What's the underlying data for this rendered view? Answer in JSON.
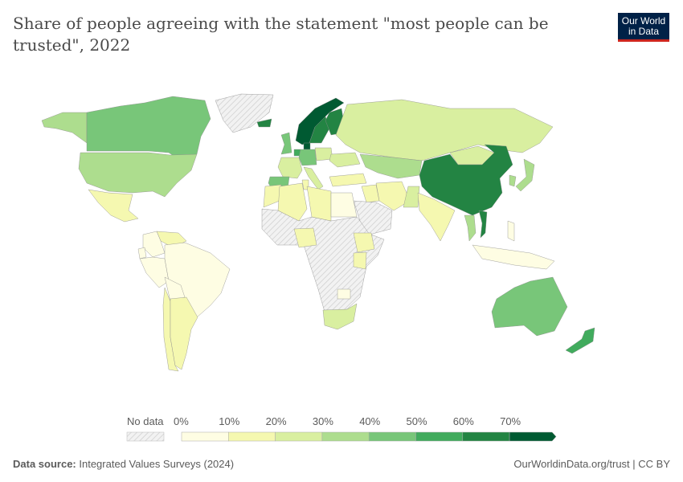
{
  "header": {
    "title": "Share of people agreeing with the statement \"most people can be trusted\", 2022",
    "logo": "Our World in Data"
  },
  "footer": {
    "source_label": "Data source:",
    "source": "Integrated Values Surveys (2024)",
    "link": "OurWorldinData.org/trust | CC BY"
  },
  "chart_data": {
    "type": "choropleth-map",
    "title": "Share of people agreeing with the statement \"most people can be trusted\", 2022",
    "unit": "%",
    "legend": {
      "no_data_label": "No data",
      "ticks": [
        "0%",
        "10%",
        "20%",
        "30%",
        "40%",
        "50%",
        "60%",
        "70%"
      ],
      "bins": [
        0,
        10,
        20,
        30,
        40,
        50,
        60,
        70
      ],
      "colors": [
        "#fefde3",
        "#f5f8b0",
        "#d9efa0",
        "#addd8e",
        "#78c679",
        "#41ab5d",
        "#238443",
        "#005a32"
      ],
      "no_data_color": "#e0e0e0"
    },
    "values": {
      "Canada": 47,
      "United States": 37,
      "Mexico": 13,
      "Alaska (US)": 37,
      "Greenland": null,
      "Colombia": 4,
      "Venezuela": 12,
      "Brazil": 5,
      "Peru": 5,
      "Bolivia": 8,
      "Chile": 13,
      "Argentina": 18,
      "Ecuador": 5,
      "Norway": 72,
      "Sweden": 63,
      "Finland": 68,
      "Denmark": 74,
      "Iceland": 60,
      "United Kingdom": 42,
      "Germany": 42,
      "France": 26,
      "Spain": 43,
      "Netherlands": 58,
      "Italy": 26,
      "Poland": 25,
      "Ukraine": 28,
      "Russia": 23,
      "Kazakhstan": 30,
      "Turkey": 14,
      "Iran": 16,
      "Iraq": 11,
      "Saudi Arabia": null,
      "Pakistan": 22,
      "India": 17,
      "China": 63,
      "Mongolia": 25,
      "Japan": 34,
      "South Korea": 33,
      "Thailand": 30,
      "Vietnam": 60,
      "Indonesia": 5,
      "Philippines": 2,
      "Algeria": 15,
      "Morocco": 12,
      "Libya": 10,
      "Egypt": 7,
      "Nigeria": 12,
      "Ethiopia": 13,
      "Kenya": 10,
      "Zimbabwe": 4,
      "South Africa": 22,
      "Tunisia": 12,
      "Australia": 48,
      "New Zealand": 57
    }
  }
}
